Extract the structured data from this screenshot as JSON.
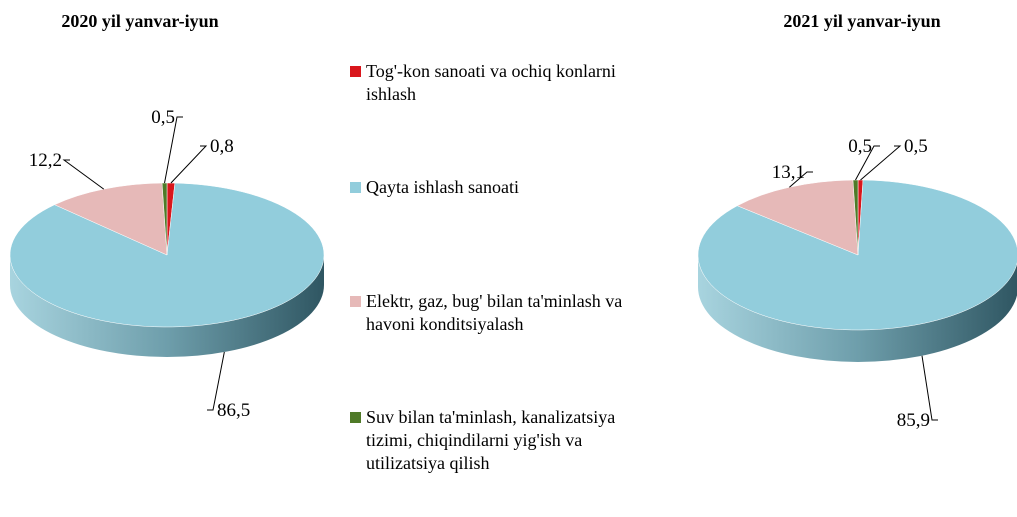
{
  "chart_data": [
    {
      "type": "pie",
      "title": "2020 yil yanvar-iyun",
      "categories": [
        "Tog'-kon sanoati va ochiq konlarni ishlash",
        "Qayta ishlash sanoati",
        "Elektr, gaz, bug' bilan ta'minlash va havoni konditsiyalash",
        "Suv bilan ta'minlash, kanalizatsiya tizimi, chiqindilarni yig'ish va utilizatsiya qilish"
      ],
      "colors": [
        "#d9161c",
        "#92cddc",
        "#e6b9b8",
        "#4f7a28"
      ],
      "values": [
        0.8,
        86.5,
        12.2,
        0.5
      ],
      "value_labels": [
        "0,8",
        "86,5",
        "12,2",
        "0,5"
      ]
    },
    {
      "type": "pie",
      "title": "2021 yil yanvar-iyun",
      "values": [
        0.5,
        85.9,
        13.1,
        0.5
      ],
      "value_labels": [
        "0,5",
        "85,9",
        "13,1",
        "0,5"
      ]
    }
  ]
}
